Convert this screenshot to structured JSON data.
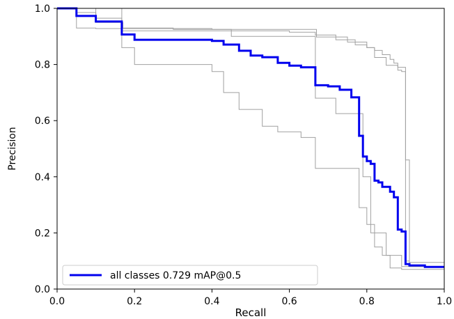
{
  "chart_data": {
    "type": "line",
    "title": "",
    "xlabel": "Recall",
    "ylabel": "Precision",
    "xlim": [
      0,
      1
    ],
    "ylim": [
      0,
      1
    ],
    "x_ticks": [
      "0.0",
      "0.2",
      "0.4",
      "0.6",
      "0.8",
      "1.0"
    ],
    "y_ticks": [
      "0.0",
      "0.2",
      "0.4",
      "0.6",
      "0.8",
      "1.0"
    ],
    "grid": false,
    "legend_position": "lower-left",
    "legend": [
      "all classes 0.729 mAP@0.5"
    ],
    "series": [
      {
        "name": "all classes 0.729 mAP@0.5",
        "color": "#0000ee",
        "x": [
          0.0,
          0.05,
          0.05,
          0.1,
          0.1,
          0.167,
          0.167,
          0.2,
          0.2,
          0.4,
          0.4,
          0.43,
          0.43,
          0.47,
          0.47,
          0.5,
          0.5,
          0.53,
          0.53,
          0.57,
          0.57,
          0.6,
          0.6,
          0.63,
          0.63,
          0.667,
          0.667,
          0.7,
          0.7,
          0.73,
          0.73,
          0.76,
          0.76,
          0.78,
          0.78,
          0.79,
          0.79,
          0.8,
          0.8,
          0.81,
          0.81,
          0.82,
          0.82,
          0.83,
          0.83,
          0.84,
          0.84,
          0.86,
          0.86,
          0.87,
          0.87,
          0.88,
          0.88,
          0.89,
          0.89,
          0.9,
          0.9,
          0.91,
          0.91,
          0.95,
          0.95,
          1.0
        ],
        "y": [
          1.0,
          1.0,
          0.973,
          0.973,
          0.953,
          0.953,
          0.907,
          0.907,
          0.888,
          0.888,
          0.884,
          0.884,
          0.871,
          0.871,
          0.849,
          0.849,
          0.832,
          0.832,
          0.826,
          0.826,
          0.806,
          0.806,
          0.796,
          0.796,
          0.79,
          0.79,
          0.726,
          0.726,
          0.722,
          0.722,
          0.71,
          0.71,
          0.683,
          0.683,
          0.546,
          0.546,
          0.472,
          0.472,
          0.456,
          0.456,
          0.446,
          0.446,
          0.386,
          0.386,
          0.38,
          0.38,
          0.364,
          0.364,
          0.347,
          0.347,
          0.327,
          0.327,
          0.212,
          0.212,
          0.205,
          0.205,
          0.089,
          0.089,
          0.084,
          0.084,
          0.079,
          0.079
        ]
      },
      {
        "color": "#a0a0a0",
        "x": [
          0.0,
          0.05,
          0.05,
          0.1,
          0.1,
          0.4,
          0.4,
          0.67,
          0.67,
          0.75,
          0.75,
          0.8,
          0.8,
          0.82,
          0.82,
          0.85,
          0.85,
          0.88,
          0.88,
          0.89,
          0.89,
          0.9,
          0.9,
          0.91,
          0.91,
          1.0
        ],
        "y": [
          1.0,
          1.0,
          0.93,
          0.93,
          0.928,
          0.928,
          0.925,
          0.925,
          0.898,
          0.898,
          0.88,
          0.88,
          0.86,
          0.86,
          0.825,
          0.825,
          0.797,
          0.797,
          0.78,
          0.78,
          0.775,
          0.775,
          0.46,
          0.46,
          0.08,
          0.08
        ]
      },
      {
        "color": "#a0a0a0",
        "x": [
          0.0,
          0.1,
          0.1,
          0.167,
          0.167,
          0.6,
          0.6,
          0.667,
          0.667,
          0.72,
          0.72,
          0.77,
          0.77,
          0.8,
          0.8,
          0.82,
          0.82,
          0.84,
          0.84,
          0.86,
          0.86,
          0.87,
          0.87,
          0.88,
          0.88,
          0.9,
          0.9,
          0.91,
          0.91,
          1.0
        ],
        "y": [
          1.0,
          1.0,
          0.965,
          0.965,
          0.92,
          0.92,
          0.915,
          0.915,
          0.905,
          0.905,
          0.888,
          0.888,
          0.87,
          0.87,
          0.86,
          0.86,
          0.85,
          0.85,
          0.835,
          0.835,
          0.818,
          0.818,
          0.805,
          0.805,
          0.79,
          0.79,
          0.1,
          0.1,
          0.095,
          0.095
        ]
      },
      {
        "color": "#a0a0a0",
        "x": [
          0.0,
          0.167,
          0.167,
          0.2,
          0.2,
          0.4,
          0.4,
          0.43,
          0.43,
          0.47,
          0.47,
          0.53,
          0.53,
          0.57,
          0.57,
          0.63,
          0.63,
          0.667,
          0.667,
          0.78,
          0.78,
          0.8,
          0.8,
          0.82,
          0.82,
          0.84,
          0.84,
          0.86,
          0.86,
          0.89,
          0.89,
          1.0
        ],
        "y": [
          1.0,
          1.0,
          0.86,
          0.86,
          0.8,
          0.8,
          0.775,
          0.775,
          0.7,
          0.7,
          0.64,
          0.64,
          0.58,
          0.58,
          0.56,
          0.56,
          0.54,
          0.54,
          0.43,
          0.43,
          0.29,
          0.29,
          0.23,
          0.23,
          0.15,
          0.15,
          0.12,
          0.12,
          0.075,
          0.075,
          0.07,
          0.07
        ]
      },
      {
        "color": "#a0a0a0",
        "x": [
          0.0,
          0.05,
          0.05,
          0.1,
          0.1,
          0.17,
          0.17,
          0.3,
          0.3,
          0.45,
          0.45,
          0.667,
          0.667,
          0.72,
          0.72,
          0.79,
          0.79,
          0.81,
          0.81,
          0.85,
          0.85,
          0.89,
          0.89,
          1.0
        ],
        "y": [
          1.0,
          1.0,
          0.985,
          0.985,
          0.95,
          0.95,
          0.93,
          0.93,
          0.925,
          0.925,
          0.9,
          0.9,
          0.68,
          0.68,
          0.625,
          0.625,
          0.4,
          0.4,
          0.2,
          0.2,
          0.12,
          0.12,
          0.08,
          0.08
        ]
      }
    ]
  }
}
